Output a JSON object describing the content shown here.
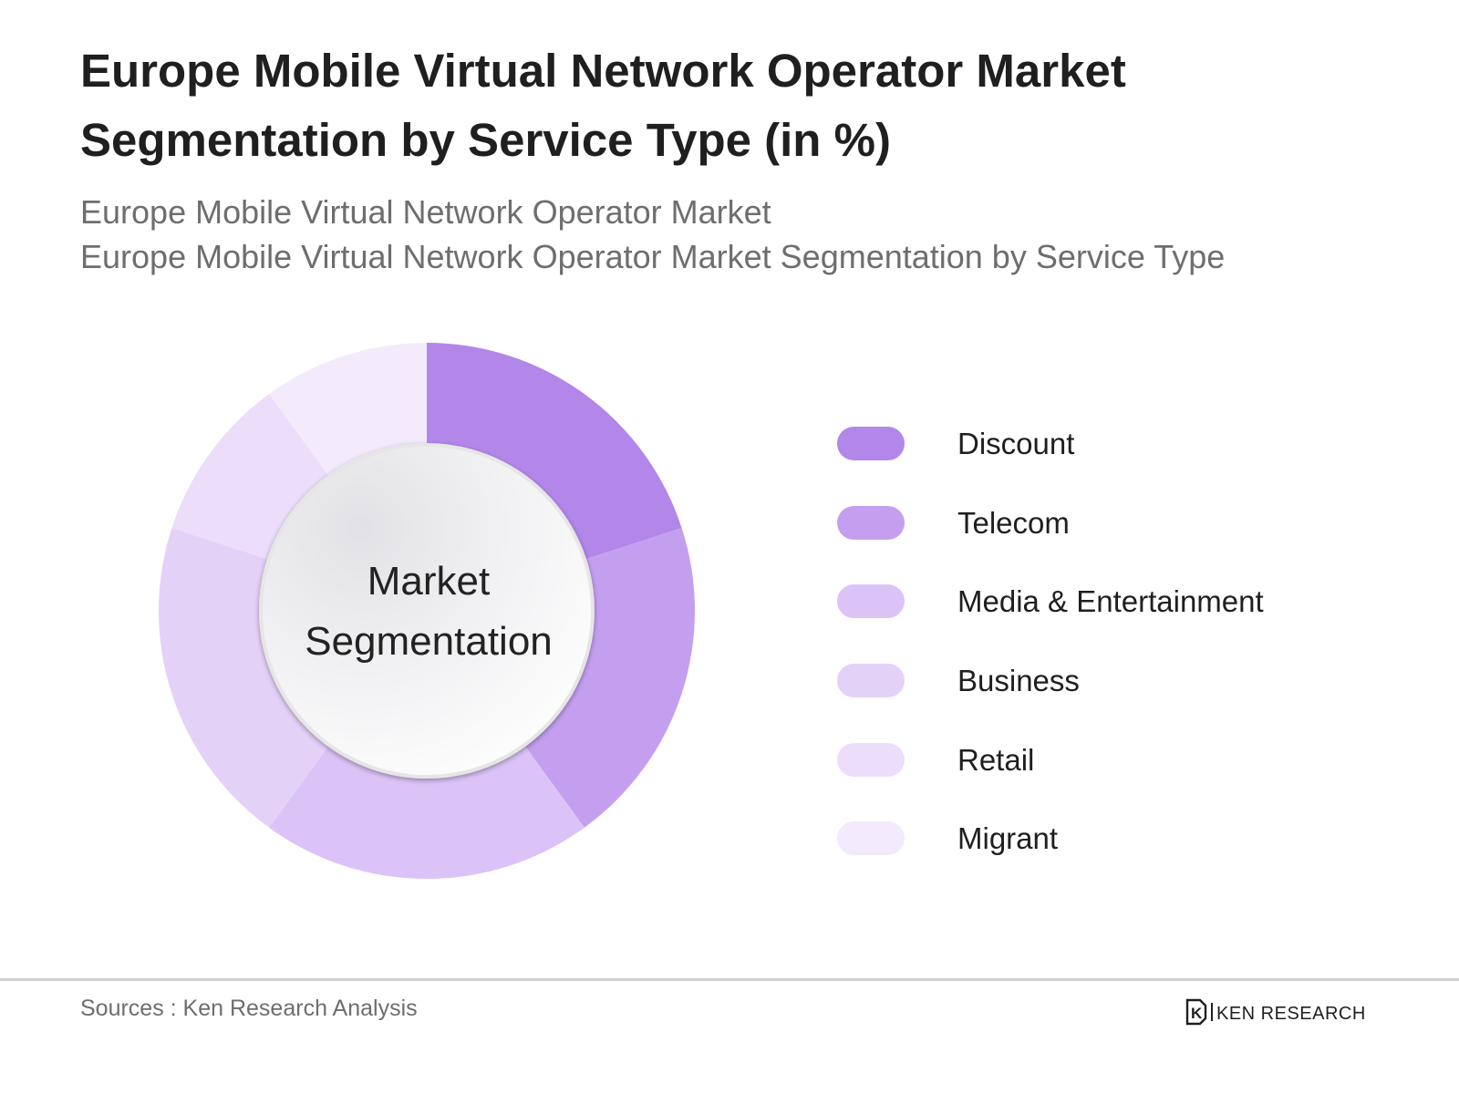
{
  "header": {
    "title": "Europe Mobile Virtual Network Operator Market Segmentation by Service Type (in %)",
    "subtitle_line1": "Europe Mobile Virtual Network Operator Market",
    "subtitle_line2": "Europe Mobile Virtual Network Operator Market Segmentation by Service Type"
  },
  "chart_data": {
    "type": "pie",
    "variant": "donut",
    "center_label_line1": "Market",
    "center_label_line2": "Segmentation",
    "legend_position": "right",
    "categories": [
      "Discount",
      "Telecom",
      "Media & Entertainment",
      "Business",
      "Retail",
      "Migrant"
    ],
    "values": [
      20,
      20,
      20,
      20,
      10,
      10
    ],
    "colors": [
      "#b386ea",
      "#c49ff0",
      "#dcc3f7",
      "#e4d1f8",
      "#ecdefa",
      "#f3ebfc"
    ]
  },
  "footer": {
    "source": "Sources : Ken Research Analysis",
    "logo_text": "KEN RESEARCH",
    "logo_mark": "K"
  }
}
